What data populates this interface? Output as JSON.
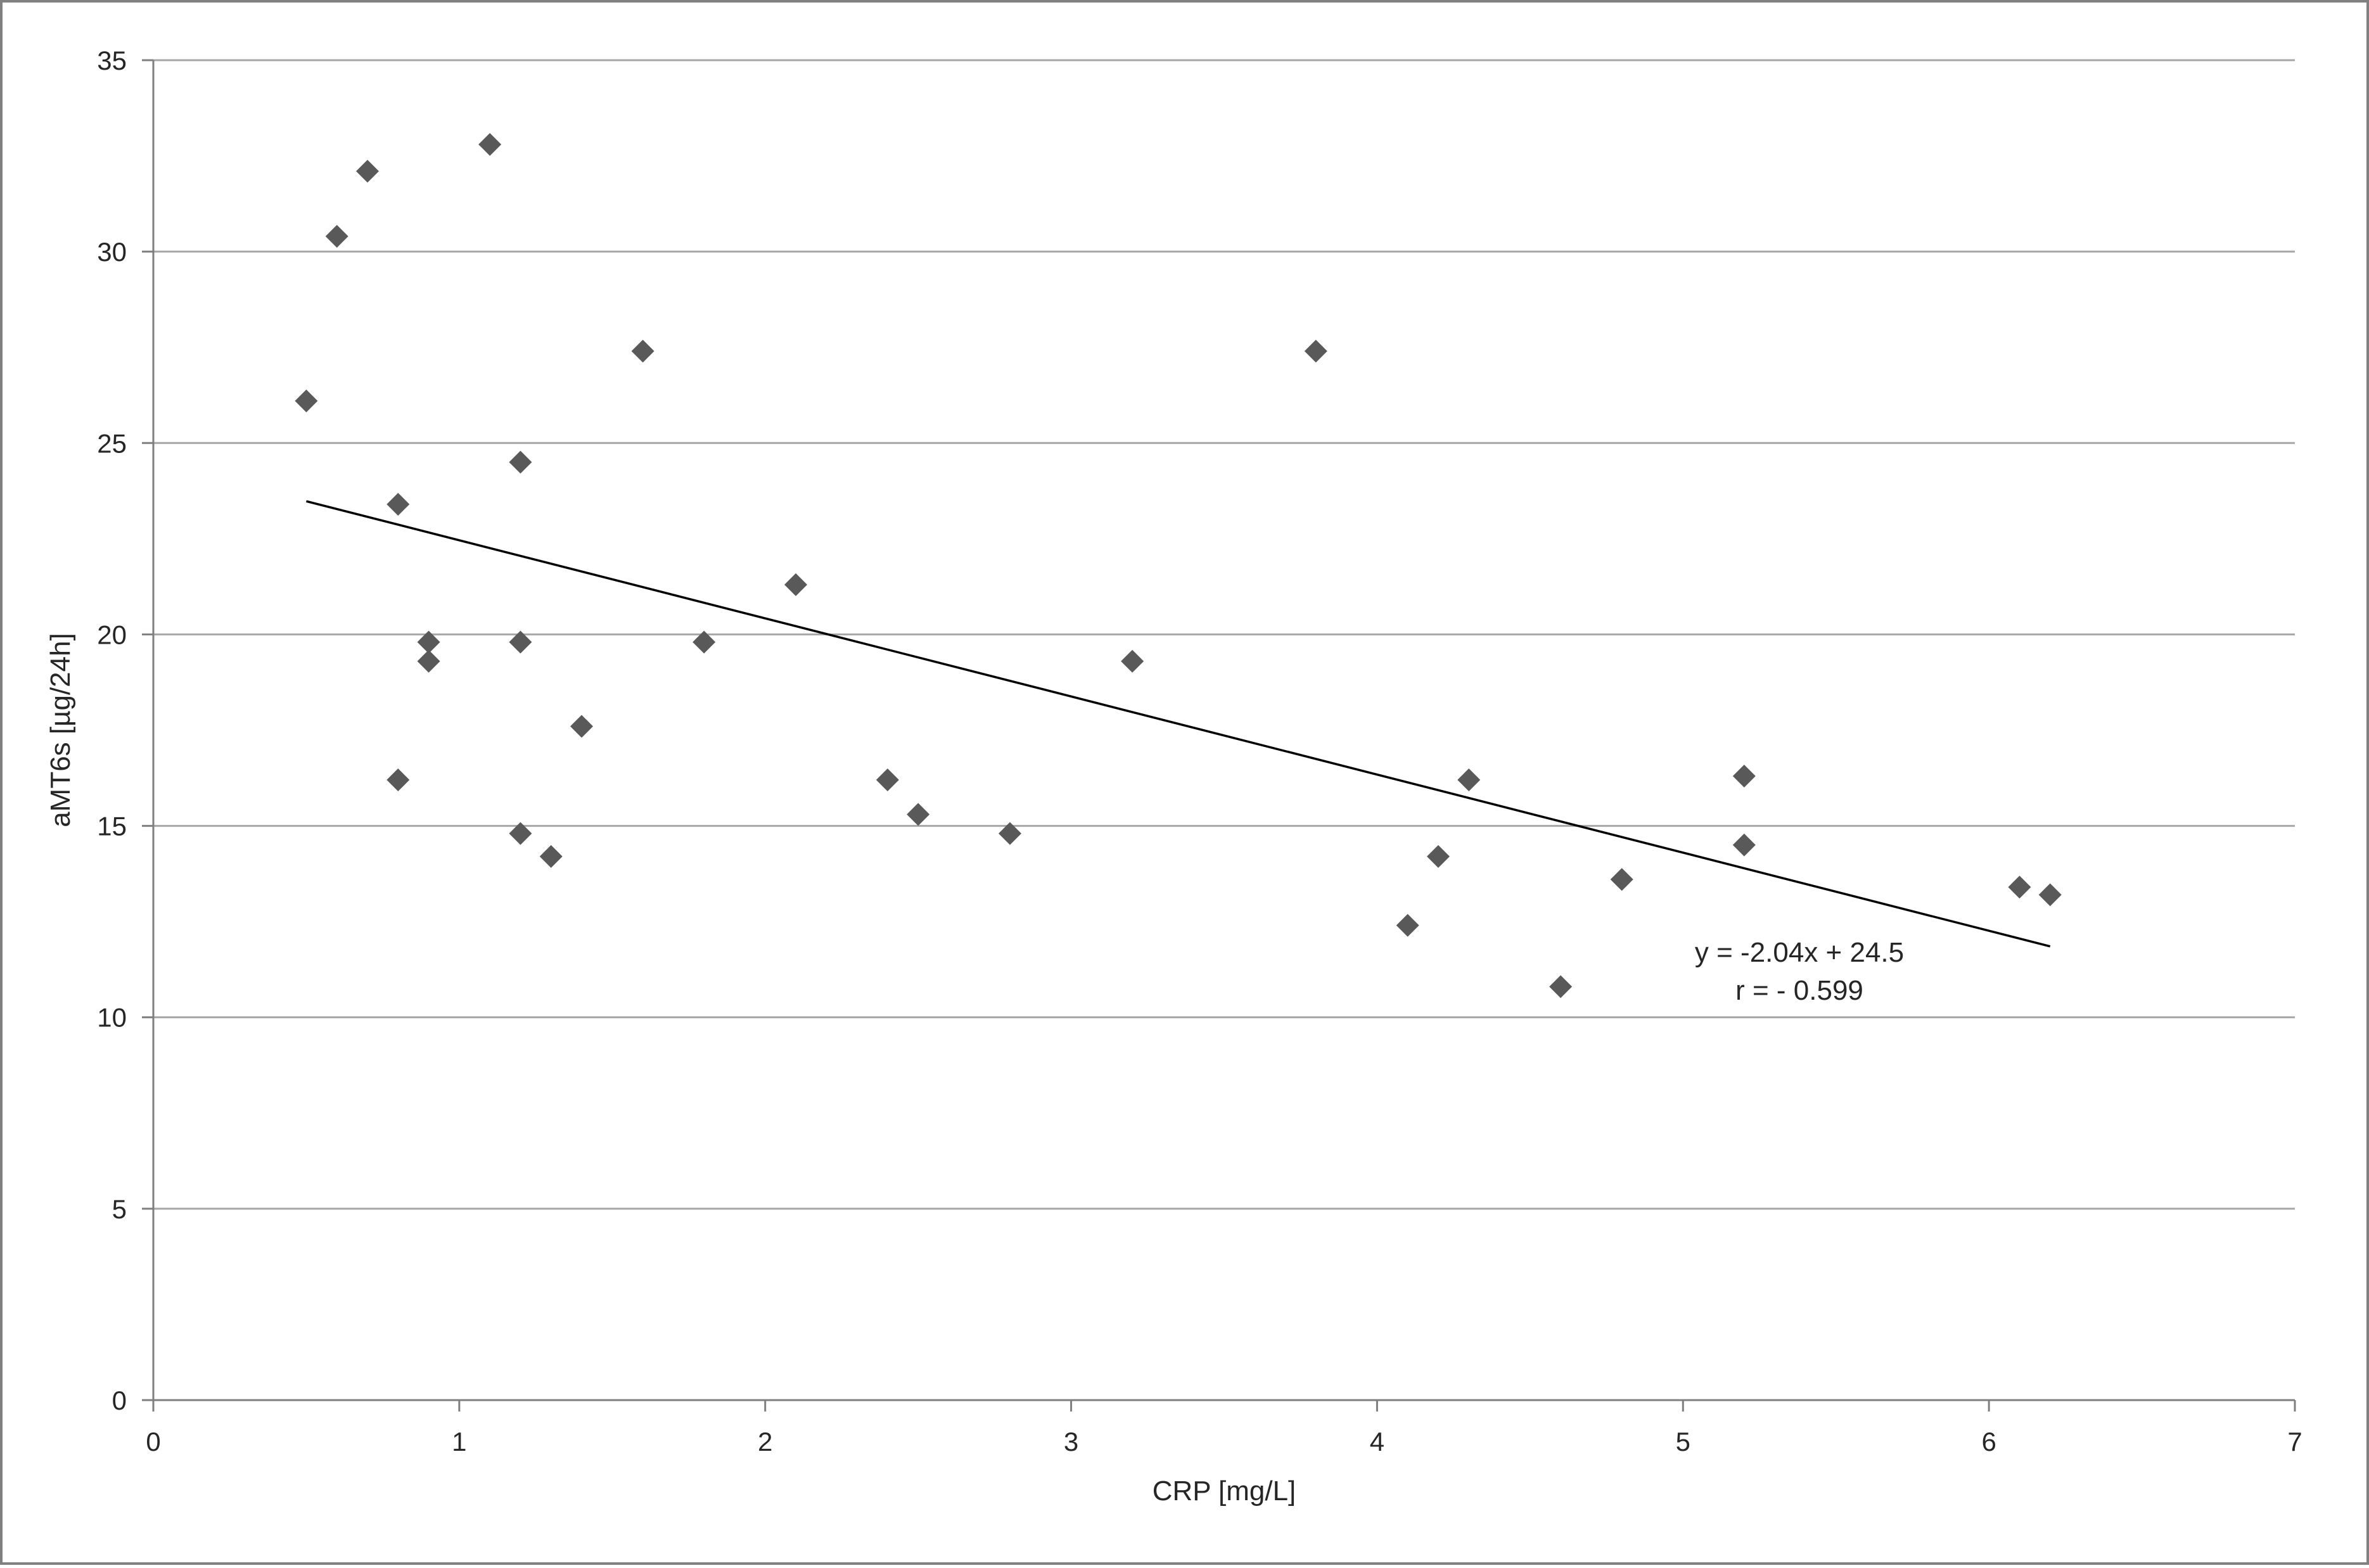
{
  "chart_data": {
    "type": "scatter",
    "xlabel": "CRP [mg/L]",
    "ylabel": "aMT6s [µg/24h]",
    "xlim": [
      0,
      7
    ],
    "ylim": [
      0,
      35
    ],
    "x_ticks": [
      0,
      1,
      2,
      3,
      4,
      5,
      6,
      7
    ],
    "y_ticks": [
      0,
      5,
      10,
      15,
      20,
      25,
      30,
      35
    ],
    "grid": {
      "horizontal": true,
      "vertical": false
    },
    "legend": "none",
    "marker": {
      "shape": "diamond",
      "color": "#595959"
    },
    "series": [
      {
        "points": [
          {
            "x": 0.5,
            "y": 26.1
          },
          {
            "x": 0.6,
            "y": 30.4
          },
          {
            "x": 0.7,
            "y": 32.1
          },
          {
            "x": 0.8,
            "y": 23.4
          },
          {
            "x": 0.8,
            "y": 16.2
          },
          {
            "x": 0.9,
            "y": 19.8
          },
          {
            "x": 0.9,
            "y": 19.3
          },
          {
            "x": 1.1,
            "y": 32.8
          },
          {
            "x": 1.2,
            "y": 24.5
          },
          {
            "x": 1.2,
            "y": 19.8
          },
          {
            "x": 1.2,
            "y": 14.8
          },
          {
            "x": 1.3,
            "y": 14.2
          },
          {
            "x": 1.4,
            "y": 17.6
          },
          {
            "x": 1.6,
            "y": 27.4
          },
          {
            "x": 1.8,
            "y": 19.8
          },
          {
            "x": 2.1,
            "y": 21.3
          },
          {
            "x": 2.4,
            "y": 16.2
          },
          {
            "x": 2.5,
            "y": 15.3
          },
          {
            "x": 2.8,
            "y": 14.8
          },
          {
            "x": 3.2,
            "y": 19.3
          },
          {
            "x": 3.8,
            "y": 27.4
          },
          {
            "x": 4.1,
            "y": 12.4
          },
          {
            "x": 4.2,
            "y": 14.2
          },
          {
            "x": 4.3,
            "y": 16.2
          },
          {
            "x": 4.6,
            "y": 10.8
          },
          {
            "x": 4.8,
            "y": 13.6
          },
          {
            "x": 5.2,
            "y": 16.3
          },
          {
            "x": 5.2,
            "y": 14.5
          },
          {
            "x": 6.1,
            "y": 13.4
          },
          {
            "x": 6.2,
            "y": 13.2
          }
        ]
      }
    ],
    "trendline": {
      "slope": -2.04,
      "intercept": 24.5,
      "x_range": [
        0.5,
        6.2
      ],
      "color": "#000000"
    },
    "annotations": {
      "equation": "y = -2.04x + 24.5",
      "correlation": "r = - 0.599"
    },
    "colors": {
      "gridline": "#a6a6a6",
      "axis": "#7f7f7f",
      "frame": "#808080",
      "text": "#262626"
    }
  }
}
